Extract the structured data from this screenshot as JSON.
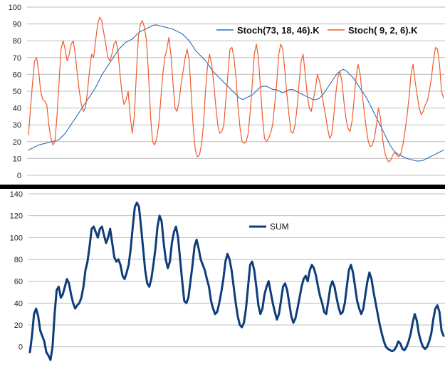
{
  "chart_data": [
    {
      "type": "line",
      "ylim": [
        0,
        100
      ],
      "yticks": [
        0,
        10,
        20,
        30,
        40,
        50,
        60,
        70,
        80,
        90,
        100
      ],
      "grid": true,
      "legend_position": "top-right",
      "series": [
        {
          "name": "Stoch(73, 18, 46).K",
          "color": "#2e6db3",
          "values": [
            15,
            16,
            17,
            18,
            18.5,
            19,
            19.5,
            20,
            20.5,
            21,
            23,
            25,
            28,
            31,
            34,
            37,
            40,
            43,
            46,
            49,
            52,
            56,
            60,
            63,
            66,
            69,
            72,
            75,
            77,
            79,
            80,
            81,
            83,
            85,
            86,
            87,
            88,
            89,
            89.5,
            89,
            88.5,
            88,
            87.5,
            87,
            86,
            85,
            84,
            82,
            80,
            77,
            74,
            72,
            70,
            68,
            65,
            62,
            60,
            58,
            56,
            54,
            52,
            50,
            48,
            46,
            45,
            46,
            47,
            48,
            50,
            52,
            53,
            53,
            52,
            51,
            51,
            50,
            49,
            50,
            51,
            51,
            50,
            49,
            48,
            47,
            46,
            45,
            45,
            46,
            48,
            51,
            54,
            57,
            60,
            62,
            63,
            62,
            60,
            58,
            55,
            52,
            49,
            46,
            42,
            38,
            34,
            30,
            26,
            22,
            18,
            15,
            13,
            12,
            11,
            10,
            9.5,
            9,
            8.5,
            8.5,
            9,
            10,
            11,
            12,
            13,
            14,
            15
          ]
        },
        {
          "name": "Stoch( 9, 2, 6).K",
          "color": "#ef5b2d",
          "values": [
            24,
            40,
            55,
            68,
            70,
            62,
            50,
            45,
            44,
            42,
            30,
            22,
            18,
            20,
            35,
            55,
            75,
            80,
            75,
            68,
            72,
            78,
            80,
            72,
            60,
            50,
            42,
            38,
            40,
            50,
            62,
            72,
            70,
            80,
            90,
            94,
            92,
            85,
            78,
            70,
            68,
            72,
            78,
            80,
            74,
            60,
            48,
            42,
            45,
            50,
            35,
            25,
            35,
            60,
            82,
            90,
            92,
            88,
            80,
            60,
            35,
            20,
            18,
            22,
            30,
            45,
            60,
            70,
            75,
            82,
            72,
            55,
            40,
            38,
            44,
            54,
            62,
            70,
            75,
            68,
            48,
            28,
            15,
            11,
            12,
            18,
            30,
            50,
            65,
            72,
            66,
            55,
            42,
            30,
            25,
            26,
            30,
            45,
            60,
            75,
            76,
            70,
            58,
            40,
            28,
            20,
            19,
            20,
            25,
            38,
            55,
            72,
            78,
            70,
            52,
            34,
            22,
            20,
            22,
            25,
            30,
            42,
            55,
            72,
            78,
            75,
            62,
            48,
            36,
            26,
            25,
            30,
            40,
            55,
            68,
            72,
            60,
            48,
            40,
            38,
            45,
            52,
            60,
            56,
            50,
            42,
            36,
            28,
            22,
            24,
            35,
            48,
            58,
            62,
            56,
            44,
            34,
            28,
            26,
            32,
            45,
            58,
            66,
            60,
            48,
            38,
            28,
            20,
            17,
            18,
            22,
            30,
            40,
            34,
            22,
            14,
            10,
            8,
            9,
            12,
            14,
            12,
            11,
            13,
            18,
            26,
            35,
            46,
            60,
            66,
            56,
            48,
            40,
            36,
            38,
            42,
            44,
            50,
            58,
            68,
            76,
            75,
            66,
            50,
            46
          ]
        }
      ]
    },
    {
      "type": "line",
      "ylim": [
        -10,
        140
      ],
      "yticks": [
        0,
        20,
        40,
        60,
        80,
        100,
        120,
        140
      ],
      "grid": true,
      "legend_position": "top-center",
      "series": [
        {
          "name": "SUM",
          "color": "#0e3d7a",
          "values": [
            -5,
            10,
            30,
            35,
            28,
            15,
            10,
            5,
            -5,
            -8,
            -12,
            0,
            30,
            52,
            55,
            45,
            48,
            55,
            62,
            58,
            48,
            40,
            35,
            38,
            40,
            45,
            55,
            70,
            78,
            92,
            108,
            110,
            105,
            100,
            108,
            110,
            102,
            95,
            100,
            108,
            95,
            82,
            78,
            80,
            75,
            65,
            62,
            68,
            75,
            90,
            110,
            128,
            132,
            128,
            110,
            90,
            70,
            58,
            55,
            62,
            75,
            90,
            110,
            120,
            115,
            95,
            80,
            72,
            78,
            95,
            105,
            110,
            100,
            80,
            60,
            42,
            40,
            45,
            60,
            75,
            92,
            98,
            90,
            80,
            75,
            70,
            62,
            55,
            42,
            35,
            30,
            32,
            40,
            50,
            62,
            78,
            85,
            80,
            70,
            55,
            40,
            28,
            20,
            18,
            22,
            35,
            55,
            75,
            78,
            70,
            55,
            38,
            30,
            35,
            48,
            55,
            60,
            50,
            40,
            32,
            25,
            30,
            42,
            55,
            58,
            52,
            40,
            28,
            22,
            26,
            35,
            45,
            55,
            62,
            65,
            60,
            70,
            75,
            72,
            65,
            55,
            46,
            40,
            32,
            30,
            42,
            55,
            60,
            55,
            45,
            36,
            30,
            32,
            40,
            55,
            70,
            75,
            68,
            55,
            42,
            35,
            30,
            35,
            48,
            60,
            68,
            62,
            50,
            40,
            30,
            20,
            12,
            5,
            0,
            -2,
            -3,
            -4,
            -3,
            0,
            5,
            3,
            -2,
            -3,
            0,
            5,
            12,
            22,
            30,
            24,
            12,
            5,
            0,
            -2,
            0,
            5,
            12,
            25,
            35,
            38,
            32,
            15,
            10
          ]
        }
      ]
    }
  ]
}
